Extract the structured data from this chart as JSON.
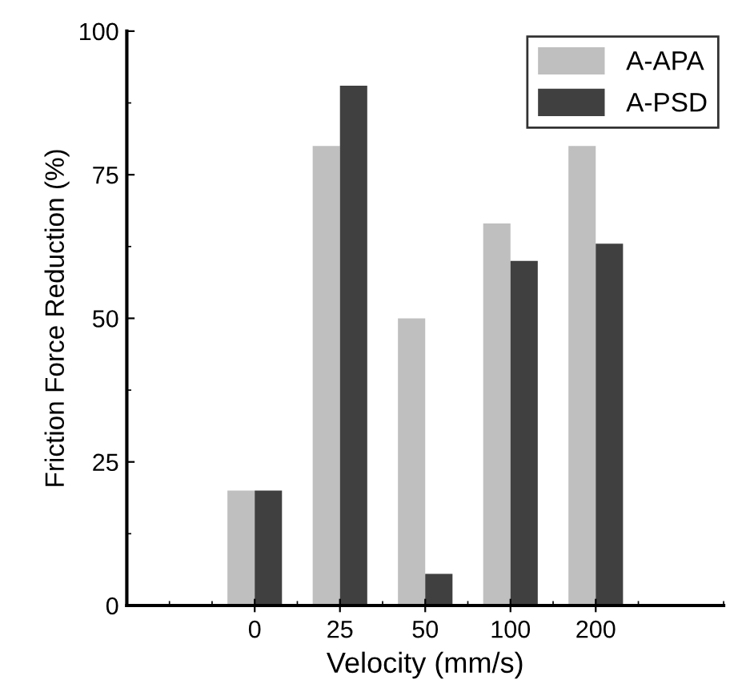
{
  "chart_data": {
    "type": "bar",
    "xlabel": "Velocity (mm/s)",
    "ylabel": "Friction Force Reduction (%)",
    "categories": [
      "0",
      "25",
      "50",
      "100",
      "200"
    ],
    "series": [
      {
        "name": "A-APA",
        "color": "#bfbfbf",
        "values": [
          20,
          80,
          50,
          66.5,
          80
        ]
      },
      {
        "name": "A-PSD",
        "color": "#404040",
        "values": [
          20,
          90.5,
          5.5,
          60,
          63
        ]
      }
    ],
    "ylim": [
      0,
      100
    ],
    "yticks": [
      0,
      25,
      50,
      75,
      100
    ],
    "grid": false,
    "legend": "top right"
  }
}
